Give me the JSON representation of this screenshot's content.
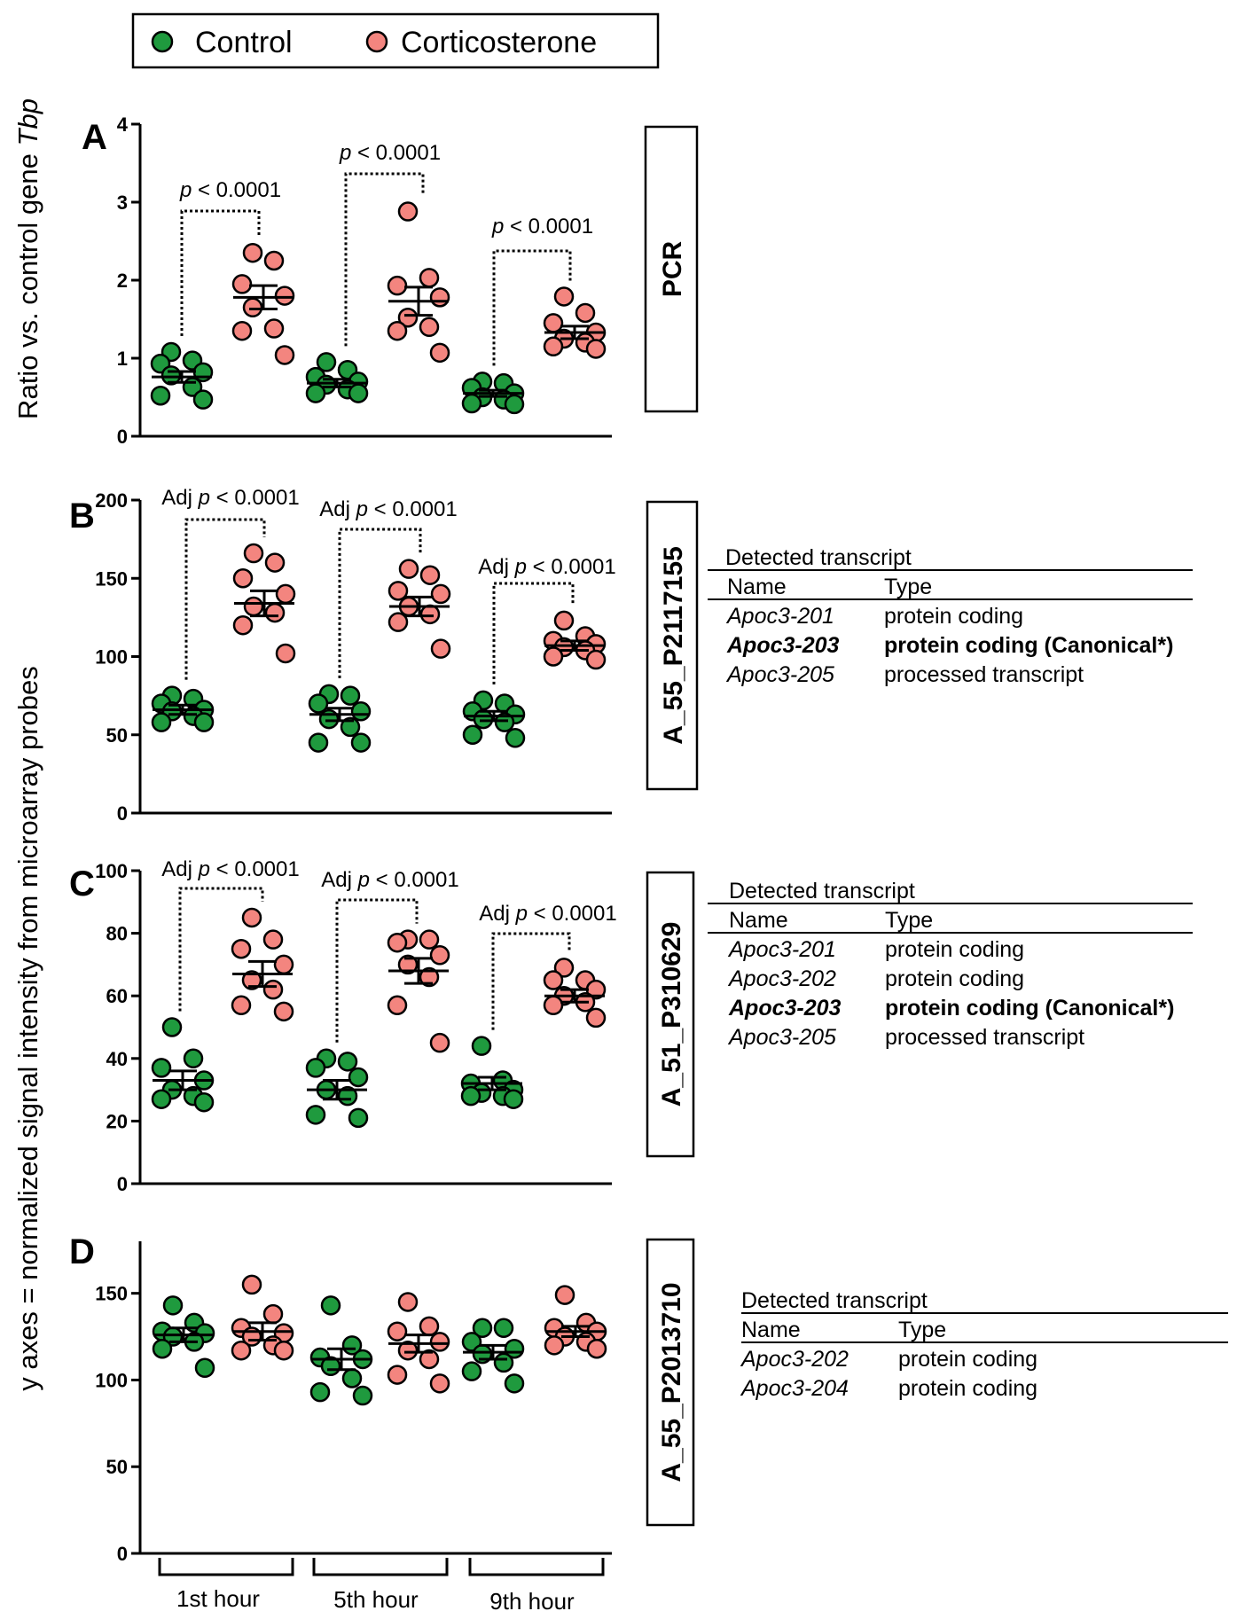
{
  "legend": {
    "items": [
      {
        "label": "Control",
        "color": "#1f9a3e"
      },
      {
        "label": "Corticosterone",
        "color": "#f3857f"
      }
    ]
  },
  "axis_titles": {
    "pcr_ylabel_prefix": "Ratio vs. control gene ",
    "pcr_ylabel_gene": "Tbp",
    "microarray_ylabel": "y axes = normalized signal intensity from microarray probes"
  },
  "colors": {
    "control": "#1f9a3e",
    "corticosterone": "#f3857f",
    "axis": "#000000"
  },
  "chart_data": [
    {
      "panel": "A",
      "type": "scatter",
      "probe": "PCR",
      "categories": [
        "1st hour",
        "5th hour",
        "9th hour"
      ],
      "ylim": [
        0,
        4
      ],
      "yticks": [
        "0",
        "1",
        "2",
        "3",
        "4"
      ],
      "series": [
        {
          "name": "Control",
          "groups": [
            {
              "mean": 0.76,
              "sem": 0.07,
              "values": [
                1.08,
                0.97,
                0.93,
                0.82,
                0.78,
                0.63,
                0.52,
                0.47
              ]
            },
            {
              "mean": 0.68,
              "sem": 0.05,
              "values": [
                0.95,
                0.85,
                0.76,
                0.7,
                0.66,
                0.6,
                0.55,
                0.55
              ]
            },
            {
              "mean": 0.55,
              "sem": 0.04,
              "values": [
                0.7,
                0.68,
                0.62,
                0.55,
                0.5,
                0.47,
                0.42,
                0.41
              ]
            }
          ]
        },
        {
          "name": "Corticosterone",
          "groups": [
            {
              "mean": 1.78,
              "sem": 0.15,
              "values": [
                2.35,
                2.25,
                1.95,
                1.8,
                1.65,
                1.38,
                1.35,
                1.04
              ]
            },
            {
              "mean": 1.73,
              "sem": 0.18,
              "values": [
                2.88,
                2.03,
                1.93,
                1.78,
                1.52,
                1.4,
                1.35,
                1.07
              ]
            },
            {
              "mean": 1.33,
              "sem": 0.08,
              "values": [
                1.79,
                1.58,
                1.45,
                1.33,
                1.25,
                1.2,
                1.15,
                1.12
              ]
            }
          ]
        }
      ],
      "annotations": [
        {
          "prefix": "",
          "p": "p",
          "text": " < 0.0001"
        },
        {
          "prefix": "",
          "p": "p",
          "text": " < 0.0001"
        },
        {
          "prefix": "",
          "p": "p",
          "text": " < 0.0001"
        }
      ]
    },
    {
      "panel": "B",
      "type": "scatter",
      "probe": "A_55_P2117155",
      "categories": [
        "1st hour",
        "5th hour",
        "9th hour"
      ],
      "ylim": [
        0,
        200
      ],
      "yticks": [
        "0",
        "50",
        "100",
        "150",
        "200"
      ],
      "series": [
        {
          "name": "Control",
          "groups": [
            {
              "mean": 66,
              "sem": 3,
              "values": [
                75,
                73,
                70,
                66,
                65,
                62,
                58,
                58
              ]
            },
            {
              "mean": 63,
              "sem": 4,
              "values": [
                76,
                75,
                70,
                65,
                60,
                55,
                45,
                45
              ]
            },
            {
              "mean": 62,
              "sem": 3,
              "values": [
                72,
                70,
                65,
                63,
                60,
                58,
                50,
                48
              ]
            }
          ]
        },
        {
          "name": "Corticosterone",
          "groups": [
            {
              "mean": 134,
              "sem": 8,
              "values": [
                166,
                160,
                150,
                140,
                132,
                128,
                120,
                102
              ]
            },
            {
              "mean": 132,
              "sem": 6,
              "values": [
                156,
                152,
                142,
                140,
                132,
                127,
                122,
                105
              ]
            },
            {
              "mean": 107,
              "sem": 3,
              "values": [
                123,
                113,
                110,
                108,
                106,
                104,
                100,
                98
              ]
            }
          ]
        }
      ],
      "annotations": [
        {
          "prefix": "Adj ",
          "p": "p",
          "text": " < 0.0001"
        },
        {
          "prefix": "Adj ",
          "p": "p",
          "text": " < 0.0001"
        },
        {
          "prefix": "Adj ",
          "p": "p",
          "text": " < 0.0001"
        }
      ],
      "transcripts": {
        "title": "Detected transcript",
        "headers": [
          "Name",
          "Type"
        ],
        "rows": [
          {
            "name": "Apoc3-201",
            "type": "protein coding",
            "bold": false
          },
          {
            "name": "Apoc3-203",
            "type": "protein coding (Canonical*)",
            "bold": true
          },
          {
            "name": "Apoc3-205",
            "type": "processed transcript",
            "bold": false
          }
        ]
      }
    },
    {
      "panel": "C",
      "type": "scatter",
      "probe": "A_51_P310629",
      "categories": [
        "1st hour",
        "5th hour",
        "9th hour"
      ],
      "ylim": [
        0,
        100
      ],
      "yticks": [
        "0",
        "20",
        "40",
        "60",
        "80",
        "100"
      ],
      "series": [
        {
          "name": "Control",
          "groups": [
            {
              "mean": 33,
              "sem": 3,
              "values": [
                50,
                40,
                37,
                33,
                30,
                28,
                27,
                26
              ]
            },
            {
              "mean": 30,
              "sem": 3,
              "values": [
                40,
                39,
                37,
                34,
                30,
                28,
                22,
                21
              ]
            },
            {
              "mean": 32,
              "sem": 2,
              "values": [
                44,
                33,
                32,
                30,
                29,
                28,
                28,
                27
              ]
            }
          ]
        },
        {
          "name": "Corticosterone",
          "groups": [
            {
              "mean": 67,
              "sem": 4,
              "values": [
                85,
                78,
                75,
                70,
                65,
                62,
                57,
                55
              ]
            },
            {
              "mean": 68,
              "sem": 4,
              "values": [
                78,
                78,
                77,
                73,
                70,
                66,
                57,
                45
              ]
            },
            {
              "mean": 60,
              "sem": 2,
              "values": [
                69,
                65,
                65,
                62,
                60,
                58,
                57,
                53
              ]
            }
          ]
        }
      ],
      "annotations": [
        {
          "prefix": "Adj ",
          "p": "p",
          "text": " < 0.0001"
        },
        {
          "prefix": "Adj ",
          "p": "p",
          "text": " < 0.0001"
        },
        {
          "prefix": "Adj ",
          "p": "p",
          "text": " < 0.0001"
        }
      ],
      "transcripts": {
        "title": "Detected transcript",
        "headers": [
          "Name",
          "Type"
        ],
        "rows": [
          {
            "name": "Apoc3-201",
            "type": "protein coding",
            "bold": false
          },
          {
            "name": "Apoc3-202",
            "type": "protein coding",
            "bold": false
          },
          {
            "name": "Apoc3-203",
            "type": "protein coding (Canonical*)",
            "bold": true
          },
          {
            "name": "Apoc3-205",
            "type": "processed transcript",
            "bold": false
          }
        ]
      }
    },
    {
      "panel": "D",
      "type": "scatter",
      "probe": "A_55_P2013710",
      "categories": [
        "1st hour",
        "5th hour",
        "9th hour"
      ],
      "ylim": [
        0,
        180
      ],
      "yticks": [
        "0",
        "50",
        "100",
        "150"
      ],
      "series": [
        {
          "name": "Control",
          "groups": [
            {
              "mean": 126,
              "sem": 4,
              "values": [
                143,
                133,
                128,
                127,
                125,
                122,
                118,
                107
              ]
            },
            {
              "mean": 112,
              "sem": 6,
              "values": [
                143,
                120,
                113,
                112,
                108,
                101,
                93,
                91
              ]
            },
            {
              "mean": 116,
              "sem": 4,
              "values": [
                130,
                130,
                122,
                118,
                115,
                110,
                105,
                98
              ]
            }
          ]
        },
        {
          "name": "Corticosterone",
          "groups": [
            {
              "mean": 128,
              "sem": 5,
              "values": [
                155,
                138,
                130,
                127,
                125,
                120,
                117,
                117
              ]
            },
            {
              "mean": 121,
              "sem": 5,
              "values": [
                145,
                131,
                128,
                122,
                117,
                112,
                103,
                98
              ]
            },
            {
              "mean": 128,
              "sem": 3,
              "values": [
                149,
                133,
                130,
                128,
                125,
                122,
                120,
                118
              ]
            }
          ]
        }
      ],
      "annotations": [],
      "transcripts": {
        "title": "Detected transcript",
        "headers": [
          "Name",
          "Type"
        ],
        "rows": [
          {
            "name": "Apoc3-202",
            "type": "protein coding",
            "bold": false
          },
          {
            "name": "Apoc3-204",
            "type": "protein coding",
            "bold": false
          }
        ]
      }
    }
  ]
}
